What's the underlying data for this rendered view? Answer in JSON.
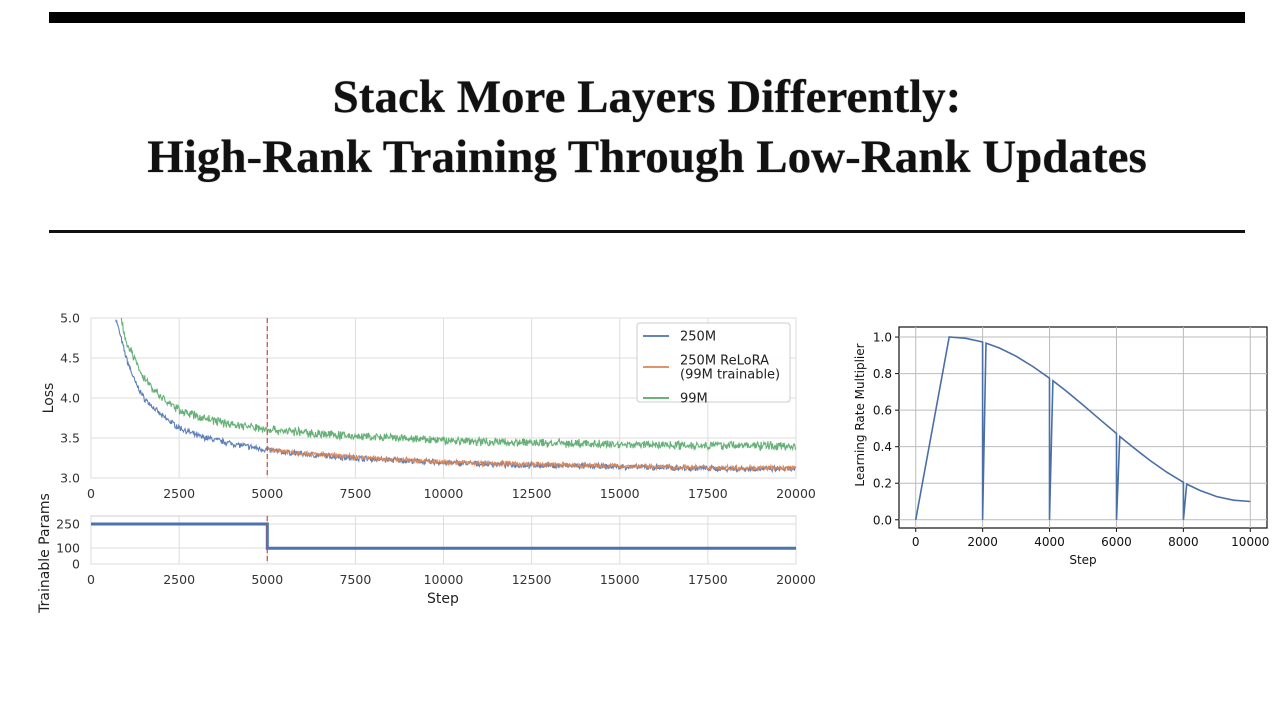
{
  "slide": {
    "title_line1": "Stack More Layers Differently:",
    "title_line2": "High-Rank Training Through Low-Rank Updates"
  },
  "chart_data": [
    {
      "type": "line",
      "xlabel": "",
      "ylabel": "Loss",
      "xlim": [
        0,
        20000
      ],
      "ylim": [
        3.0,
        5.0
      ],
      "xticks": [
        "0",
        "2500",
        "5000",
        "7500",
        "10000",
        "12500",
        "15000",
        "17500",
        "20000"
      ],
      "yticks": [
        "3.0",
        "3.5",
        "4.0",
        "4.5",
        "5.0"
      ],
      "grid": true,
      "legend_position": "top-right",
      "vline": {
        "x": 5000,
        "style": "dashed",
        "color": "#c44e52"
      },
      "series": [
        {
          "name": "250M",
          "color": "#4c72b0",
          "points": [
            [
              700,
              5.0
            ],
            [
              1000,
              4.5
            ],
            [
              1250,
              4.2
            ],
            [
              1500,
              4.0
            ],
            [
              2000,
              3.78
            ],
            [
              2500,
              3.63
            ],
            [
              3000,
              3.53
            ],
            [
              4000,
              3.43
            ],
            [
              5000,
              3.35
            ],
            [
              6000,
              3.3
            ],
            [
              7500,
              3.25
            ],
            [
              10000,
              3.19
            ],
            [
              12500,
              3.16
            ],
            [
              15000,
              3.14
            ],
            [
              17500,
              3.12
            ],
            [
              20000,
              3.11
            ]
          ]
        },
        {
          "name": "250M ReLoRA\n(99M trainable)",
          "legend_lines": [
            "250M ReLoRA",
            "(99M trainable)"
          ],
          "color": "#dd8452",
          "points": [
            [
              5000,
              3.36
            ],
            [
              6000,
              3.31
            ],
            [
              7500,
              3.26
            ],
            [
              10000,
              3.2
            ],
            [
              12500,
              3.17
            ],
            [
              15000,
              3.15
            ],
            [
              17500,
              3.13
            ],
            [
              20000,
              3.12
            ]
          ]
        },
        {
          "name": "99M",
          "color": "#55a868",
          "points": [
            [
              850,
              5.0
            ],
            [
              1000,
              4.7
            ],
            [
              1500,
              4.25
            ],
            [
              2000,
              4.0
            ],
            [
              2500,
              3.85
            ],
            [
              3000,
              3.77
            ],
            [
              4000,
              3.67
            ],
            [
              5000,
              3.61
            ],
            [
              6000,
              3.57
            ],
            [
              7500,
              3.52
            ],
            [
              10000,
              3.47
            ],
            [
              12500,
              3.44
            ],
            [
              15000,
              3.42
            ],
            [
              17500,
              3.41
            ],
            [
              20000,
              3.4
            ]
          ]
        }
      ]
    },
    {
      "type": "line",
      "xlabel": "Step",
      "ylabel": "Trainable Params",
      "xlim": [
        0,
        20000
      ],
      "ylim": [
        0,
        300
      ],
      "xticks": [
        "0",
        "2500",
        "5000",
        "7500",
        "10000",
        "12500",
        "15000",
        "17500",
        "20000"
      ],
      "yticks": [
        "0",
        "100",
        "250"
      ],
      "grid": true,
      "vline": {
        "x": 5000,
        "style": "dashed",
        "color": "#c44e52"
      },
      "series": [
        {
          "color": "#4c72b0",
          "points": [
            [
              0,
              250
            ],
            [
              5000,
              250
            ],
            [
              5000,
              99
            ],
            [
              20000,
              99
            ]
          ]
        }
      ]
    },
    {
      "type": "line",
      "xlabel": "Step",
      "ylabel": "Learning Rate Multiplier",
      "xlim": [
        -500,
        10500
      ],
      "ylim": [
        -0.045,
        1.055
      ],
      "xticks": [
        "0",
        "2000",
        "4000",
        "6000",
        "8000",
        "10000"
      ],
      "yticks": [
        "0.0",
        "0.2",
        "0.4",
        "0.6",
        "0.8",
        "1.0"
      ],
      "grid": true,
      "series": [
        {
          "color": "#4a6fa5",
          "points": [
            [
              0,
              0
            ],
            [
              1000,
              1.0
            ],
            [
              1500,
              0.993
            ],
            [
              2000,
              0.973
            ],
            [
              2000,
              0
            ],
            [
              2100,
              0.967
            ],
            [
              2500,
              0.94
            ],
            [
              3000,
              0.895
            ],
            [
              3500,
              0.839
            ],
            [
              4000,
              0.775
            ],
            [
              4000,
              0
            ],
            [
              4100,
              0.761
            ],
            [
              4500,
              0.704
            ],
            [
              5000,
              0.628
            ],
            [
              5500,
              0.55
            ],
            [
              6000,
              0.472
            ],
            [
              6000,
              0
            ],
            [
              6100,
              0.456
            ],
            [
              6500,
              0.396
            ],
            [
              7000,
              0.325
            ],
            [
              7500,
              0.261
            ],
            [
              8000,
              0.205
            ],
            [
              8000,
              0
            ],
            [
              8100,
              0.195
            ],
            [
              8500,
              0.16
            ],
            [
              9000,
              0.127
            ],
            [
              9500,
              0.107
            ],
            [
              10000,
              0.1
            ]
          ]
        }
      ]
    }
  ]
}
